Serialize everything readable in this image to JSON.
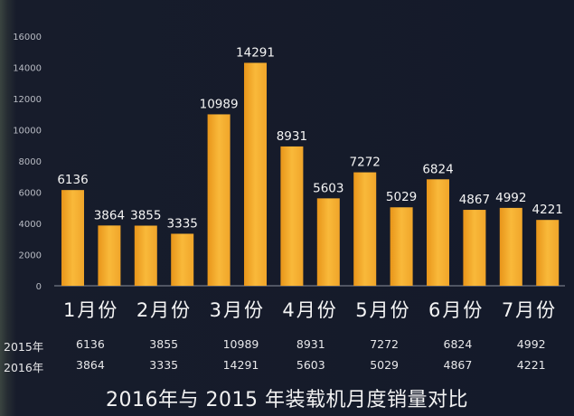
{
  "chart_data": {
    "type": "bar",
    "title": "2016年与 2015 年装载机月度销量对比",
    "categories": [
      "1月份",
      "2月份",
      "3月份",
      "4月份",
      "5月份",
      "6月份",
      "7月份"
    ],
    "series": [
      {
        "name": "2015年",
        "values": [
          6136,
          3855,
          10989,
          8931,
          7272,
          6824,
          4992
        ]
      },
      {
        "name": "2016年",
        "values": [
          3864,
          3335,
          14291,
          5603,
          5029,
          4867,
          4221
        ]
      }
    ],
    "ylim": [
      0,
      16000
    ],
    "yticks": [
      0,
      2000,
      4000,
      6000,
      8000,
      10000,
      12000,
      14000,
      16000
    ],
    "grid": false,
    "legend": "none",
    "colors": {
      "bar": "#f5a623",
      "background": "#151a28",
      "text": "#ffffff"
    }
  }
}
